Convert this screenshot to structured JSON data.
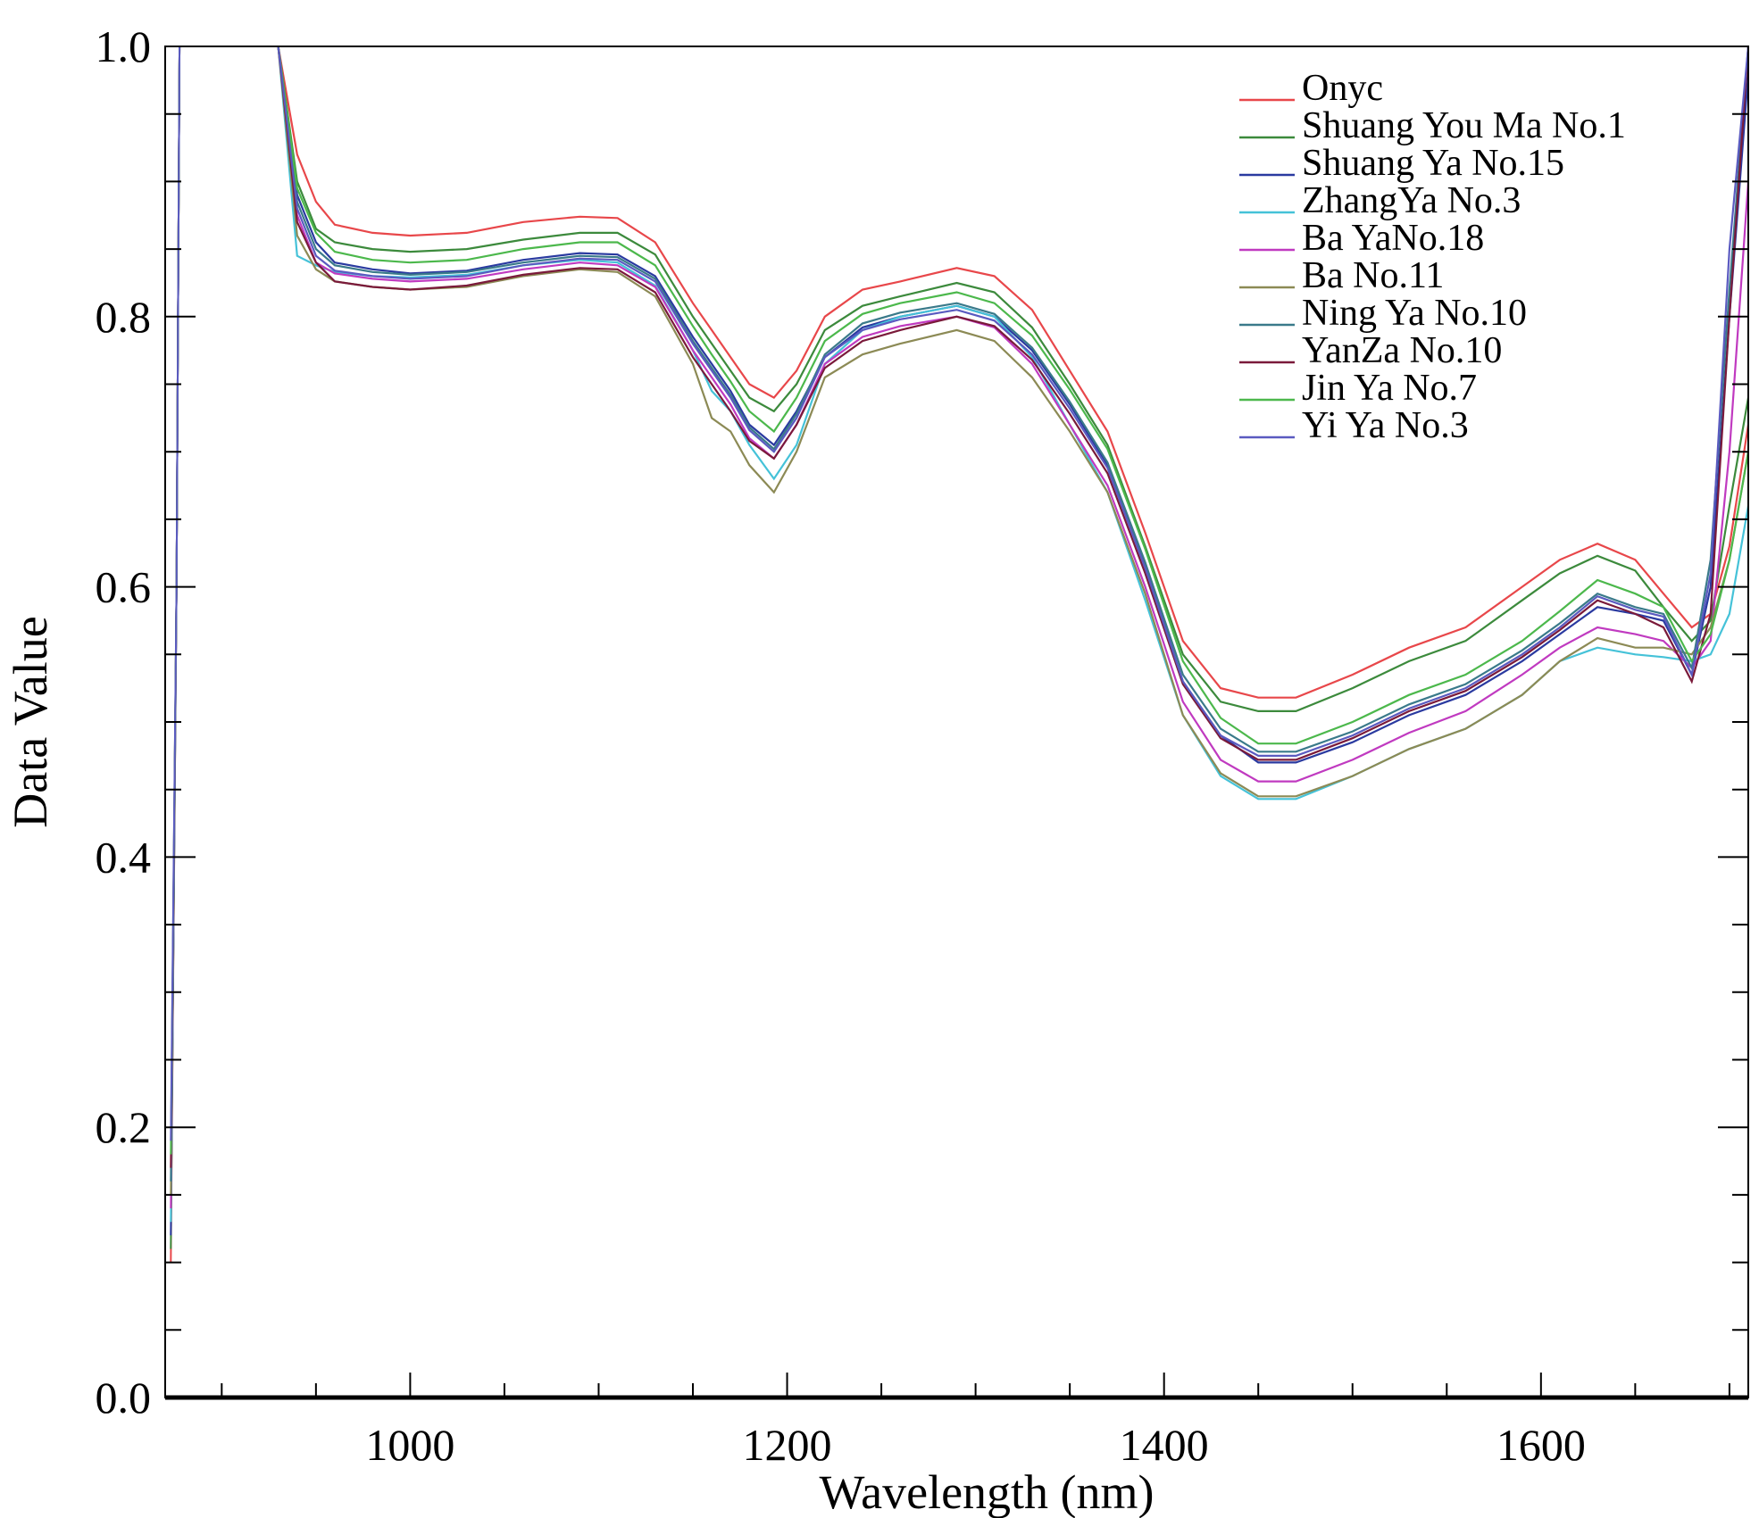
{
  "chart_data": {
    "type": "line",
    "xlabel": "Wavelength (nm)",
    "ylabel": "Data Value",
    "xlim": [
      870,
      1710
    ],
    "ylim": [
      0,
      1
    ],
    "x_ticks": [
      1000,
      1200,
      1400,
      1600
    ],
    "y_ticks": [
      0.0,
      0.2,
      0.4,
      0.6,
      0.8,
      1.0
    ],
    "y_tick_labels": [
      "0.0",
      "0.2",
      "0.4",
      "0.6",
      "0.8",
      "1.0"
    ],
    "grid": false,
    "legend_position": "top-right",
    "x": [
      930,
      940,
      950,
      960,
      980,
      1000,
      1030,
      1060,
      1090,
      1110,
      1130,
      1150,
      1160,
      1170,
      1180,
      1193,
      1205,
      1220,
      1240,
      1260,
      1290,
      1310,
      1330,
      1350,
      1370,
      1390,
      1410,
      1430,
      1450,
      1470,
      1500,
      1530,
      1560,
      1590,
      1610,
      1630,
      1650,
      1665,
      1680,
      1690,
      1700,
      1710
    ],
    "series": [
      {
        "name": "Onyc",
        "color": "#e8474a",
        "values": [
          1.0,
          0.92,
          0.885,
          0.868,
          0.862,
          0.86,
          0.862,
          0.87,
          0.874,
          0.873,
          0.855,
          0.81,
          0.79,
          0.77,
          0.75,
          0.74,
          0.76,
          0.8,
          0.82,
          0.826,
          0.836,
          0.83,
          0.805,
          0.76,
          0.715,
          0.64,
          0.56,
          0.525,
          0.518,
          0.518,
          0.535,
          0.555,
          0.57,
          0.6,
          0.62,
          0.632,
          0.62,
          0.595,
          0.57,
          0.58,
          0.63,
          0.72
        ]
      },
      {
        "name": "Shuang You Ma No.1",
        "color": "#3c8a3c",
        "values": [
          1.0,
          0.9,
          0.865,
          0.855,
          0.85,
          0.848,
          0.85,
          0.857,
          0.862,
          0.862,
          0.846,
          0.8,
          0.78,
          0.76,
          0.74,
          0.73,
          0.75,
          0.79,
          0.808,
          0.815,
          0.825,
          0.818,
          0.792,
          0.75,
          0.705,
          0.63,
          0.55,
          0.515,
          0.508,
          0.508,
          0.525,
          0.545,
          0.56,
          0.59,
          0.61,
          0.623,
          0.612,
          0.585,
          0.56,
          0.575,
          0.66,
          0.74
        ]
      },
      {
        "name": "Shuang Ya No.15",
        "color": "#2a3aa0",
        "values": [
          1.0,
          0.89,
          0.855,
          0.84,
          0.835,
          0.832,
          0.834,
          0.842,
          0.847,
          0.846,
          0.83,
          0.785,
          0.765,
          0.745,
          0.72,
          0.705,
          0.73,
          0.77,
          0.792,
          0.8,
          0.808,
          0.8,
          0.775,
          0.735,
          0.69,
          0.615,
          0.53,
          0.49,
          0.47,
          0.47,
          0.485,
          0.505,
          0.52,
          0.545,
          0.565,
          0.585,
          0.58,
          0.575,
          0.535,
          0.6,
          0.8,
          0.98
        ]
      },
      {
        "name": "ZhangYa No.3",
        "color": "#45c2d8",
        "values": [
          1.0,
          0.845,
          0.838,
          0.833,
          0.83,
          0.829,
          0.831,
          0.838,
          0.842,
          0.84,
          0.823,
          0.775,
          0.745,
          0.73,
          0.705,
          0.68,
          0.705,
          0.765,
          0.79,
          0.8,
          0.808,
          0.8,
          0.77,
          0.72,
          0.67,
          0.59,
          0.505,
          0.46,
          0.443,
          0.443,
          0.46,
          0.48,
          0.495,
          0.52,
          0.545,
          0.555,
          0.55,
          0.548,
          0.545,
          0.55,
          0.58,
          0.66
        ]
      },
      {
        "name": "Ba YaNo.18",
        "color": "#c03ac0",
        "values": [
          1.0,
          0.875,
          0.84,
          0.832,
          0.828,
          0.826,
          0.828,
          0.835,
          0.84,
          0.838,
          0.822,
          0.775,
          0.755,
          0.735,
          0.71,
          0.695,
          0.72,
          0.765,
          0.785,
          0.793,
          0.8,
          0.792,
          0.765,
          0.72,
          0.675,
          0.6,
          0.515,
          0.472,
          0.456,
          0.456,
          0.472,
          0.492,
          0.508,
          0.535,
          0.555,
          0.57,
          0.565,
          0.56,
          0.54,
          0.56,
          0.7,
          0.9
        ]
      },
      {
        "name": "Ba No.11",
        "color": "#8c8a55",
        "values": [
          1.0,
          0.86,
          0.835,
          0.826,
          0.822,
          0.82,
          0.822,
          0.83,
          0.835,
          0.833,
          0.815,
          0.765,
          0.725,
          0.715,
          0.69,
          0.67,
          0.7,
          0.755,
          0.772,
          0.78,
          0.79,
          0.782,
          0.755,
          0.715,
          0.67,
          0.595,
          0.505,
          0.462,
          0.445,
          0.445,
          0.46,
          0.48,
          0.495,
          0.52,
          0.545,
          0.562,
          0.555,
          0.555,
          0.55,
          0.57,
          0.62,
          0.7
        ]
      },
      {
        "name": "Ning Ya No.10",
        "color": "#3a7a8a",
        "values": [
          1.0,
          0.885,
          0.85,
          0.838,
          0.833,
          0.831,
          0.833,
          0.84,
          0.845,
          0.844,
          0.828,
          0.782,
          0.762,
          0.742,
          0.718,
          0.702,
          0.728,
          0.772,
          0.795,
          0.803,
          0.81,
          0.802,
          0.777,
          0.737,
          0.692,
          0.618,
          0.535,
          0.495,
          0.478,
          0.478,
          0.493,
          0.513,
          0.528,
          0.553,
          0.573,
          0.595,
          0.585,
          0.58,
          0.54,
          0.62,
          0.82,
          1.0
        ]
      },
      {
        "name": "YanZa No.10",
        "color": "#7a1a3a",
        "values": [
          1.0,
          0.87,
          0.84,
          0.826,
          0.822,
          0.82,
          0.823,
          0.831,
          0.836,
          0.835,
          0.818,
          0.77,
          0.75,
          0.73,
          0.708,
          0.695,
          0.72,
          0.762,
          0.782,
          0.79,
          0.8,
          0.793,
          0.768,
          0.728,
          0.684,
          0.61,
          0.528,
          0.488,
          0.472,
          0.472,
          0.488,
          0.508,
          0.523,
          0.548,
          0.568,
          0.59,
          0.58,
          0.57,
          0.53,
          0.58,
          0.8,
          1.0
        ]
      },
      {
        "name": "Jin Ya No.7",
        "color": "#4cb84c",
        "values": [
          1.0,
          0.895,
          0.862,
          0.848,
          0.842,
          0.84,
          0.842,
          0.85,
          0.855,
          0.855,
          0.838,
          0.793,
          0.772,
          0.752,
          0.73,
          0.715,
          0.74,
          0.782,
          0.802,
          0.81,
          0.818,
          0.81,
          0.786,
          0.746,
          0.702,
          0.628,
          0.545,
          0.503,
          0.484,
          0.484,
          0.5,
          0.52,
          0.535,
          0.56,
          0.582,
          0.605,
          0.595,
          0.585,
          0.545,
          0.565,
          0.62,
          0.7
        ]
      },
      {
        "name": "Yi Ya No.3",
        "color": "#5a5ac0",
        "values": [
          1.0,
          0.88,
          0.845,
          0.834,
          0.83,
          0.828,
          0.83,
          0.838,
          0.843,
          0.842,
          0.826,
          0.78,
          0.76,
          0.74,
          0.716,
          0.7,
          0.725,
          0.77,
          0.79,
          0.798,
          0.805,
          0.797,
          0.772,
          0.732,
          0.688,
          0.614,
          0.53,
          0.49,
          0.475,
          0.475,
          0.49,
          0.51,
          0.525,
          0.55,
          0.57,
          0.593,
          0.583,
          0.578,
          0.535,
          0.61,
          0.85,
          1.0
        ]
      }
    ]
  }
}
